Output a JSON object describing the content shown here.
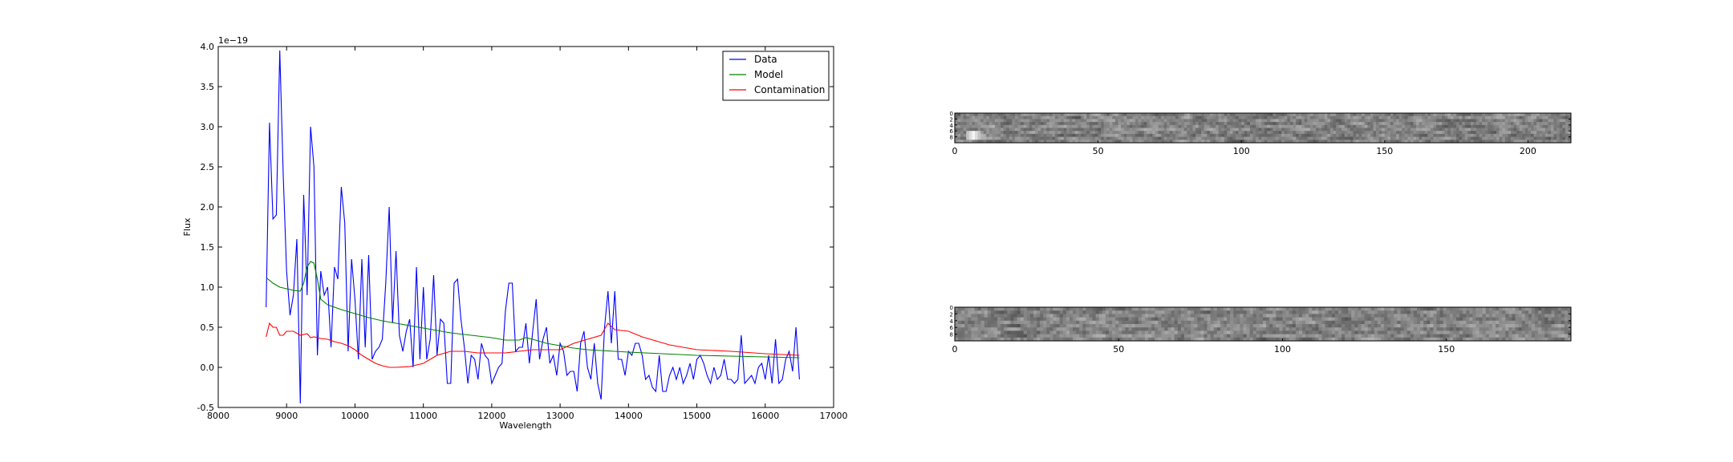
{
  "chart_data": [
    {
      "type": "line",
      "xlabel": "Wavelength",
      "ylabel": "Flux",
      "offset_label": "1e−19",
      "xlim": [
        8000,
        17000
      ],
      "ylim": [
        -0.5,
        4.0
      ],
      "xticks": [
        8000,
        9000,
        10000,
        11000,
        12000,
        13000,
        14000,
        15000,
        16000,
        17000
      ],
      "yticks": [
        -0.5,
        0.0,
        0.5,
        1.0,
        1.5,
        2.0,
        2.5,
        3.0,
        3.5,
        4.0
      ],
      "legend_position": "top-right",
      "grid": false,
      "series": [
        {
          "name": "Data",
          "color": "#0000ff",
          "points": [
            [
              8700,
              0.75
            ],
            [
              8750,
              3.05
            ],
            [
              8800,
              1.85
            ],
            [
              8850,
              1.9
            ],
            [
              8900,
              3.95
            ],
            [
              8950,
              2.4
            ],
            [
              9000,
              1.2
            ],
            [
              9050,
              0.65
            ],
            [
              9100,
              0.9
            ],
            [
              9150,
              1.6
            ],
            [
              9200,
              -0.45
            ],
            [
              9250,
              2.15
            ],
            [
              9300,
              0.9
            ],
            [
              9350,
              3.0
            ],
            [
              9400,
              2.5
            ],
            [
              9450,
              0.15
            ],
            [
              9500,
              1.2
            ],
            [
              9550,
              0.9
            ],
            [
              9600,
              1.0
            ],
            [
              9650,
              0.25
            ],
            [
              9700,
              1.25
            ],
            [
              9750,
              1.1
            ],
            [
              9800,
              2.25
            ],
            [
              9850,
              1.8
            ],
            [
              9900,
              0.2
            ],
            [
              9950,
              1.35
            ],
            [
              10000,
              0.85
            ],
            [
              10050,
              0.1
            ],
            [
              10100,
              1.35
            ],
            [
              10150,
              0.25
            ],
            [
              10200,
              1.4
            ],
            [
              10250,
              0.1
            ],
            [
              10300,
              0.2
            ],
            [
              10350,
              0.25
            ],
            [
              10400,
              0.35
            ],
            [
              10450,
              1.05
            ],
            [
              10500,
              2.0
            ],
            [
              10550,
              0.55
            ],
            [
              10600,
              1.45
            ],
            [
              10650,
              0.4
            ],
            [
              10700,
              0.2
            ],
            [
              10750,
              0.45
            ],
            [
              10800,
              0.6
            ],
            [
              10850,
              0.0
            ],
            [
              10900,
              1.25
            ],
            [
              10950,
              0.1
            ],
            [
              11000,
              1.0
            ],
            [
              11050,
              0.1
            ],
            [
              11100,
              0.35
            ],
            [
              11150,
              1.15
            ],
            [
              11200,
              0.15
            ],
            [
              11250,
              0.6
            ],
            [
              11300,
              0.55
            ],
            [
              11350,
              -0.2
            ],
            [
              11400,
              -0.2
            ],
            [
              11450,
              1.05
            ],
            [
              11500,
              1.1
            ],
            [
              11550,
              0.6
            ],
            [
              11600,
              0.25
            ],
            [
              11650,
              -0.2
            ],
            [
              11700,
              0.15
            ],
            [
              11750,
              0.1
            ],
            [
              11800,
              -0.15
            ],
            [
              11850,
              0.3
            ],
            [
              11900,
              0.15
            ],
            [
              11950,
              0.1
            ],
            [
              12000,
              -0.2
            ],
            [
              12050,
              -0.1
            ],
            [
              12100,
              0.0
            ],
            [
              12150,
              0.05
            ],
            [
              12200,
              0.7
            ],
            [
              12250,
              1.05
            ],
            [
              12300,
              1.05
            ],
            [
              12350,
              0.2
            ],
            [
              12400,
              0.25
            ],
            [
              12450,
              0.25
            ],
            [
              12500,
              0.55
            ],
            [
              12550,
              0.05
            ],
            [
              12600,
              0.45
            ],
            [
              12650,
              0.85
            ],
            [
              12700,
              0.1
            ],
            [
              12750,
              0.35
            ],
            [
              12800,
              0.5
            ],
            [
              12850,
              0.05
            ],
            [
              12900,
              0.15
            ],
            [
              12950,
              -0.1
            ],
            [
              13000,
              0.3
            ],
            [
              13050,
              0.2
            ],
            [
              13100,
              -0.1
            ],
            [
              13150,
              -0.05
            ],
            [
              13200,
              -0.05
            ],
            [
              13250,
              -0.3
            ],
            [
              13300,
              0.3
            ],
            [
              13350,
              0.45
            ],
            [
              13400,
              0.0
            ],
            [
              13450,
              -0.15
            ],
            [
              13500,
              0.3
            ],
            [
              13550,
              -0.2
            ],
            [
              13600,
              -0.4
            ],
            [
              13650,
              0.5
            ],
            [
              13700,
              0.95
            ],
            [
              13750,
              0.3
            ],
            [
              13800,
              0.95
            ],
            [
              13850,
              0.1
            ],
            [
              13900,
              0.1
            ],
            [
              13950,
              -0.1
            ],
            [
              14000,
              0.2
            ],
            [
              14050,
              0.15
            ],
            [
              14100,
              0.3
            ],
            [
              14150,
              0.3
            ],
            [
              14200,
              0.15
            ],
            [
              14250,
              -0.15
            ],
            [
              14300,
              -0.1
            ],
            [
              14350,
              -0.25
            ],
            [
              14400,
              -0.3
            ],
            [
              14450,
              0.15
            ],
            [
              14500,
              -0.3
            ],
            [
              14550,
              -0.3
            ],
            [
              14600,
              -0.1
            ],
            [
              14650,
              0.0
            ],
            [
              14700,
              -0.15
            ],
            [
              14750,
              0.0
            ],
            [
              14800,
              -0.2
            ],
            [
              14850,
              -0.1
            ],
            [
              14900,
              0.05
            ],
            [
              14950,
              -0.15
            ],
            [
              15000,
              0.1
            ],
            [
              15050,
              0.15
            ],
            [
              15100,
              0.05
            ],
            [
              15150,
              -0.1
            ],
            [
              15200,
              -0.2
            ],
            [
              15250,
              0.0
            ],
            [
              15300,
              -0.15
            ],
            [
              15350,
              -0.1
            ],
            [
              15400,
              0.1
            ],
            [
              15450,
              -0.15
            ],
            [
              15500,
              -0.15
            ],
            [
              15550,
              -0.2
            ],
            [
              15600,
              -0.15
            ],
            [
              15650,
              0.4
            ],
            [
              15700,
              -0.2
            ],
            [
              15750,
              -0.15
            ],
            [
              15800,
              -0.1
            ],
            [
              15850,
              -0.2
            ],
            [
              15900,
              0.0
            ],
            [
              15950,
              0.05
            ],
            [
              16000,
              -0.15
            ],
            [
              16050,
              0.15
            ],
            [
              16100,
              -0.2
            ],
            [
              16150,
              0.35
            ],
            [
              16200,
              -0.2
            ],
            [
              16250,
              -0.15
            ],
            [
              16300,
              0.1
            ],
            [
              16350,
              0.2
            ],
            [
              16400,
              -0.05
            ],
            [
              16450,
              0.5
            ],
            [
              16500,
              -0.15
            ]
          ]
        },
        {
          "name": "Model",
          "color": "#008000",
          "points": [
            [
              8700,
              1.12
            ],
            [
              8800,
              1.05
            ],
            [
              8900,
              1.0
            ],
            [
              9000,
              0.98
            ],
            [
              9100,
              0.96
            ],
            [
              9200,
              0.95
            ],
            [
              9250,
              1.05
            ],
            [
              9300,
              1.25
            ],
            [
              9350,
              1.32
            ],
            [
              9400,
              1.3
            ],
            [
              9450,
              1.1
            ],
            [
              9500,
              0.85
            ],
            [
              9600,
              0.78
            ],
            [
              9800,
              0.72
            ],
            [
              10000,
              0.67
            ],
            [
              10200,
              0.62
            ],
            [
              10400,
              0.58
            ],
            [
              10600,
              0.55
            ],
            [
              10800,
              0.52
            ],
            [
              11000,
              0.49
            ],
            [
              11200,
              0.46
            ],
            [
              11400,
              0.43
            ],
            [
              11600,
              0.41
            ],
            [
              11800,
              0.39
            ],
            [
              12000,
              0.37
            ],
            [
              12200,
              0.34
            ],
            [
              12400,
              0.34
            ],
            [
              12500,
              0.37
            ],
            [
              12600,
              0.35
            ],
            [
              12800,
              0.3
            ],
            [
              13000,
              0.27
            ],
            [
              13200,
              0.24
            ],
            [
              13400,
              0.22
            ],
            [
              13600,
              0.21
            ],
            [
              13800,
              0.2
            ],
            [
              14000,
              0.19
            ],
            [
              14500,
              0.17
            ],
            [
              15000,
              0.15
            ],
            [
              15500,
              0.14
            ],
            [
              16000,
              0.13
            ],
            [
              16500,
              0.12
            ]
          ]
        },
        {
          "name": "Contamination",
          "color": "#ff0000",
          "points": [
            [
              8700,
              0.38
            ],
            [
              8750,
              0.55
            ],
            [
              8800,
              0.5
            ],
            [
              8850,
              0.5
            ],
            [
              8900,
              0.4
            ],
            [
              8950,
              0.4
            ],
            [
              9000,
              0.45
            ],
            [
              9100,
              0.45
            ],
            [
              9200,
              0.4
            ],
            [
              9300,
              0.42
            ],
            [
              9350,
              0.37
            ],
            [
              9400,
              0.38
            ],
            [
              9500,
              0.36
            ],
            [
              9600,
              0.35
            ],
            [
              9700,
              0.32
            ],
            [
              9800,
              0.3
            ],
            [
              9900,
              0.27
            ],
            [
              10000,
              0.22
            ],
            [
              10100,
              0.15
            ],
            [
              10200,
              0.1
            ],
            [
              10300,
              0.05
            ],
            [
              10400,
              0.02
            ],
            [
              10500,
              0.0
            ],
            [
              10600,
              0.0
            ],
            [
              10800,
              0.01
            ],
            [
              11000,
              0.05
            ],
            [
              11200,
              0.15
            ],
            [
              11400,
              0.2
            ],
            [
              11600,
              0.2
            ],
            [
              11800,
              0.18
            ],
            [
              12000,
              0.18
            ],
            [
              12200,
              0.18
            ],
            [
              12400,
              0.2
            ],
            [
              12600,
              0.22
            ],
            [
              12800,
              0.22
            ],
            [
              13000,
              0.22
            ],
            [
              13200,
              0.3
            ],
            [
              13400,
              0.35
            ],
            [
              13600,
              0.4
            ],
            [
              13700,
              0.55
            ],
            [
              13800,
              0.47
            ],
            [
              14000,
              0.45
            ],
            [
              14200,
              0.38
            ],
            [
              14400,
              0.33
            ],
            [
              14600,
              0.28
            ],
            [
              14800,
              0.25
            ],
            [
              15000,
              0.22
            ],
            [
              15500,
              0.2
            ],
            [
              16000,
              0.17
            ],
            [
              16500,
              0.15
            ]
          ]
        }
      ]
    },
    {
      "type": "heatmap",
      "xlim": [
        0,
        215
      ],
      "ylim": [
        0,
        10
      ],
      "xticks": [
        0,
        50,
        100,
        150,
        200
      ],
      "yticks": [
        0,
        2,
        4,
        6,
        8
      ],
      "colormap": "gray",
      "rows": 10,
      "cols": 215,
      "bright_spot": [
        6,
        7
      ]
    },
    {
      "type": "heatmap",
      "xlim": [
        0,
        188
      ],
      "ylim": [
        0,
        10
      ],
      "xticks": [
        0,
        50,
        100,
        150
      ],
      "yticks": [
        0,
        2,
        4,
        6,
        8
      ],
      "colormap": "gray",
      "rows": 10,
      "cols": 188
    }
  ]
}
